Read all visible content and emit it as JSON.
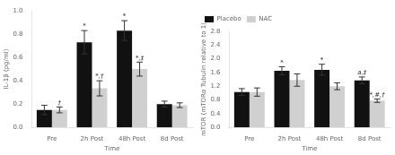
{
  "chart_data": [
    {
      "type": "bar",
      "xlabel": "Time",
      "ylabel": "IL-1β (pg/ml)",
      "categories": [
        "Pre",
        "2h Post",
        "48h Post",
        "8d Post"
      ],
      "series": [
        {
          "name": "Placebo",
          "color": "#111111",
          "values": [
            0.15,
            0.73,
            0.83,
            0.2
          ],
          "errors": [
            0.04,
            0.1,
            0.085,
            0.025
          ],
          "annotations": [
            null,
            "*",
            "*",
            null
          ]
        },
        {
          "name": "NAC",
          "color": "#d0d0d0",
          "values": [
            0.15,
            0.335,
            0.5,
            0.19
          ],
          "errors": [
            0.025,
            0.065,
            0.06,
            0.02
          ],
          "annotations": [
            "†",
            "*,†",
            "*,‡",
            null
          ]
        }
      ],
      "ylim": [
        0,
        1.0
      ],
      "yticks": [
        {
          "value": 0.0,
          "label": "0.0"
        },
        0.2,
        0.4,
        0.6,
        0.8,
        {
          "value": 1.0,
          "label": "1.0"
        }
      ],
      "grid": false
    },
    {
      "type": "bar",
      "xlabel": "Time",
      "ylabel": "mTOR (mTORα Tubulin relative to 1)",
      "categories": [
        "Pre",
        "2h Post",
        "48h Post",
        "8d Post"
      ],
      "series": [
        {
          "name": "Placebo",
          "color": "#111111",
          "values": [
            1.03,
            1.65,
            1.68,
            1.37
          ],
          "errors": [
            0.1,
            0.12,
            0.16,
            0.1
          ],
          "annotations": [
            null,
            "*",
            "*",
            "a,‡"
          ]
        },
        {
          "name": "NAC",
          "color": "#d0d0d0",
          "values": [
            1.03,
            1.38,
            1.2,
            0.78
          ],
          "errors": [
            0.12,
            0.18,
            0.1,
            0.05
          ],
          "annotations": [
            null,
            null,
            null,
            "*,#,†"
          ]
        }
      ],
      "ylim": [
        0,
        2.8
      ],
      "yticks": [
        {
          "value": 0.0,
          "label": "0.0"
        },
        0.4,
        0.8,
        1.2,
        1.6,
        {
          "value": 2.0,
          "label": "2.0"
        },
        2.4,
        2.8
      ],
      "grid": false,
      "legend": "upper left"
    }
  ]
}
